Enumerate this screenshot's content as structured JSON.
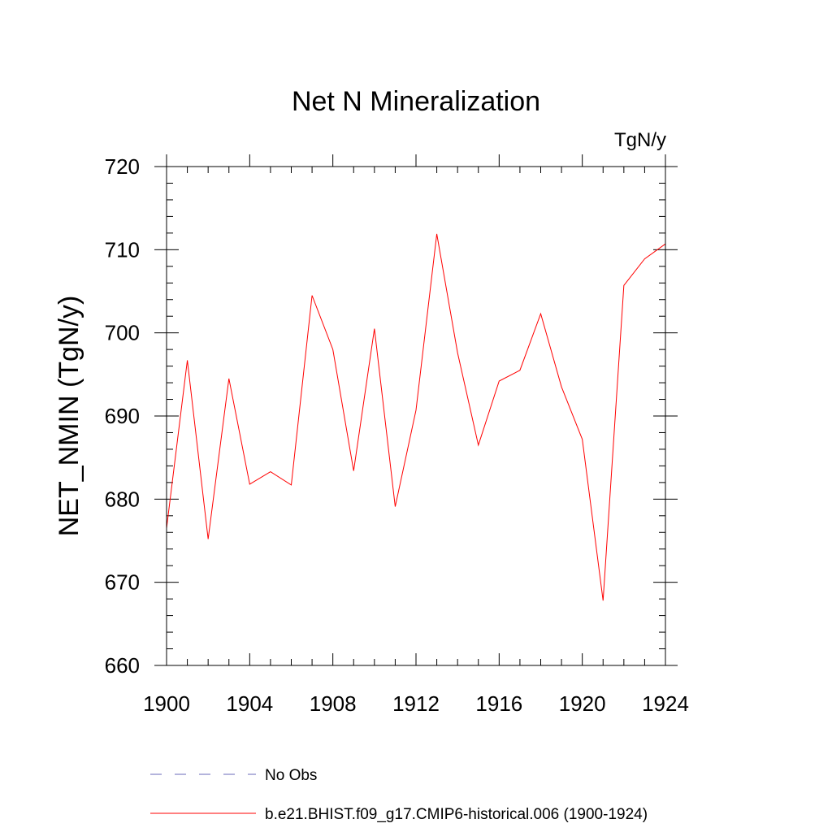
{
  "chart_data": {
    "type": "line",
    "title": "Net N Mineralization",
    "units_label": "TgN/y",
    "ylabel": "NET_NMIN  (TgN/y)",
    "xlabel": "",
    "xlim": [
      1900,
      1924
    ],
    "ylim": [
      660,
      720
    ],
    "x_ticks": [
      1900,
      1904,
      1908,
      1912,
      1916,
      1920,
      1924
    ],
    "y_ticks": [
      660,
      670,
      680,
      690,
      700,
      710,
      720
    ],
    "x_minor_step": 1,
    "y_minor_step": 2,
    "grid": false,
    "legend_position": "bottom",
    "series": [
      {
        "name": "b.e21.BHIST.f09_g17.CMIP6-historical.006 (1900-1924)",
        "color": "#ff0000",
        "line_style": "solid",
        "x": [
          1900,
          1901,
          1902,
          1903,
          1904,
          1905,
          1906,
          1907,
          1908,
          1909,
          1910,
          1911,
          1912,
          1913,
          1914,
          1915,
          1916,
          1917,
          1918,
          1919,
          1920,
          1921,
          1922,
          1923,
          1924
        ],
        "values": [
          676.5,
          696.7,
          675.2,
          694.5,
          681.8,
          683.3,
          681.7,
          704.5,
          698.0,
          683.4,
          700.5,
          679.1,
          690.7,
          711.9,
          697.6,
          686.5,
          694.2,
          695.5,
          702.3,
          693.5,
          687.2,
          667.8,
          705.7,
          708.9,
          710.7
        ]
      }
    ],
    "legend": [
      {
        "label": "No Obs",
        "color": "#6a6ab8",
        "line_style": "dashed"
      },
      {
        "label": "b.e21.BHIST.f09_g17.CMIP6-historical.006 (1900-1924)",
        "color": "#ff0000",
        "line_style": "solid"
      }
    ]
  }
}
